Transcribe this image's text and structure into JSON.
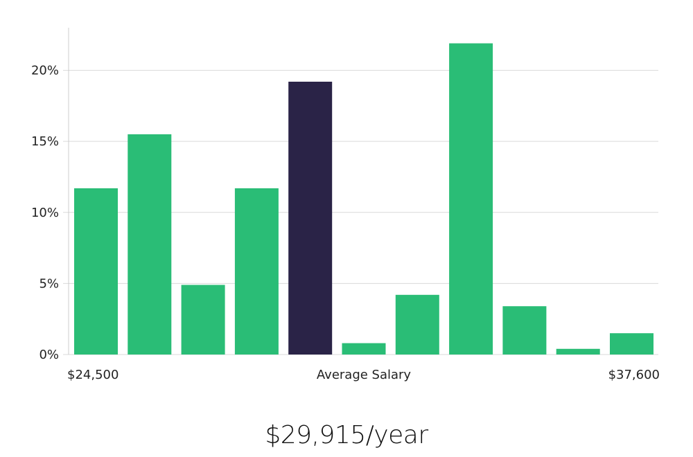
{
  "chart_data": {
    "type": "bar",
    "values": [
      11.7,
      15.5,
      4.9,
      11.7,
      19.2,
      0.8,
      4.2,
      21.9,
      3.4,
      0.4,
      1.5
    ],
    "highlight_index": 4,
    "ylim": [
      0,
      23
    ],
    "y_ticks": [
      0,
      5,
      10,
      15,
      20
    ],
    "y_tick_labels": [
      "0%",
      "5%",
      "10%",
      "15%",
      "20%"
    ],
    "x_labels": {
      "left": "$24,500",
      "center": "Average Salary",
      "right": "$37,600"
    },
    "grid": true,
    "colors": {
      "bar": "#2abd76",
      "highlight": "#2a2347",
      "grid": "#d9d9d9",
      "axis": "#cccccc"
    }
  },
  "summary": {
    "salary": "$29,915/year"
  }
}
